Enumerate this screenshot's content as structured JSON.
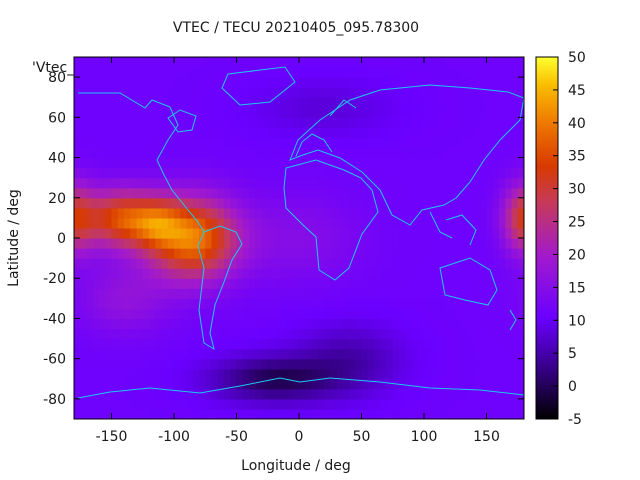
{
  "chart_data": {
    "type": "heatmap",
    "title": "VTEC / TECU 20210405_095.78300",
    "xlabel": "Longitude / deg",
    "ylabel": "Latitude / deg",
    "key_label": "'Vtec_",
    "xlim": [
      -180,
      180
    ],
    "ylim": [
      -90,
      90
    ],
    "x_ticks": [
      -150,
      -100,
      -50,
      0,
      50,
      100,
      150
    ],
    "y_ticks": [
      -80,
      -60,
      -40,
      -20,
      0,
      20,
      40,
      60,
      80
    ],
    "colorbar": {
      "range": [
        -5,
        50
      ],
      "ticks": [
        -5,
        0,
        5,
        10,
        15,
        20,
        25,
        30,
        35,
        40,
        45,
        50
      ],
      "palette": "black-purple-red-orange-yellow"
    },
    "background_vtec": 11,
    "features": [
      {
        "lon": -85,
        "lat": 0,
        "vtec": 40,
        "lon_sigma": 25,
        "lat_sigma": 14
      },
      {
        "lon": -145,
        "lat": 10,
        "vtec": 33,
        "lon_sigma": 18,
        "lat_sigma": 10
      },
      {
        "lon": -115,
        "lat": 8,
        "vtec": 27,
        "lon_sigma": 15,
        "lat_sigma": 9
      },
      {
        "lon": 180,
        "lat": 10,
        "vtec": 30,
        "lon_sigma": 12,
        "lat_sigma": 12
      },
      {
        "lon": -140,
        "lat": -30,
        "vtec": 17,
        "lon_sigma": 25,
        "lat_sigma": 12
      },
      {
        "lon": 0,
        "lat": 0,
        "vtec": 15,
        "lon_sigma": 35,
        "lat_sigma": 15
      },
      {
        "lon": -20,
        "lat": -70,
        "vtec": 0,
        "lon_sigma": 35,
        "lat_sigma": 8
      },
      {
        "lon": 40,
        "lat": -60,
        "vtec": 5,
        "lon_sigma": 30,
        "lat_sigma": 12
      },
      {
        "lon": 20,
        "lat": 65,
        "vtec": 8,
        "lon_sigma": 40,
        "lat_sigma": 10
      }
    ]
  }
}
